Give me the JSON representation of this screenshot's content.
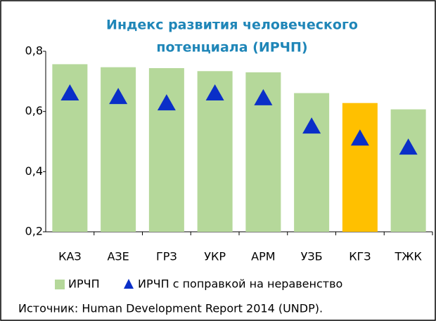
{
  "chart_data": {
    "type": "bar",
    "title": [
      "Индекс развития человеческого",
      "потенциала (ИРЧП)"
    ],
    "categories": [
      "КАЗ",
      "АЗЕ",
      "ГРЗ",
      "УКР",
      "АРМ",
      "УЗБ",
      "КГЗ",
      "ТЖК"
    ],
    "series": [
      {
        "name": "ИРЧП",
        "type": "bar",
        "color": "#b5d89a",
        "colors": [
          "#b5d89a",
          "#b5d89a",
          "#b5d89a",
          "#b5d89a",
          "#b5d89a",
          "#b5d89a",
          "#ffc000",
          "#b5d89a"
        ],
        "values": [
          0.757,
          0.747,
          0.744,
          0.734,
          0.73,
          0.661,
          0.628,
          0.607
        ]
      },
      {
        "name": "ИРЧП с поправкой на неравенство",
        "type": "triangle",
        "color": "#0a2fc8",
        "values": [
          0.66,
          0.648,
          0.627,
          0.66,
          0.644,
          0.55,
          0.51,
          0.48
        ]
      }
    ],
    "ylim": [
      0.2,
      0.8
    ],
    "yticks": [
      {
        "value": 0.2,
        "label": "0,2"
      },
      {
        "value": 0.4,
        "label": "0,4"
      },
      {
        "value": 0.6,
        "label": "0,6"
      },
      {
        "value": 0.8,
        "label": "0,8"
      }
    ],
    "source": "Источник: Human Development Report 2014 (UNDP)."
  }
}
